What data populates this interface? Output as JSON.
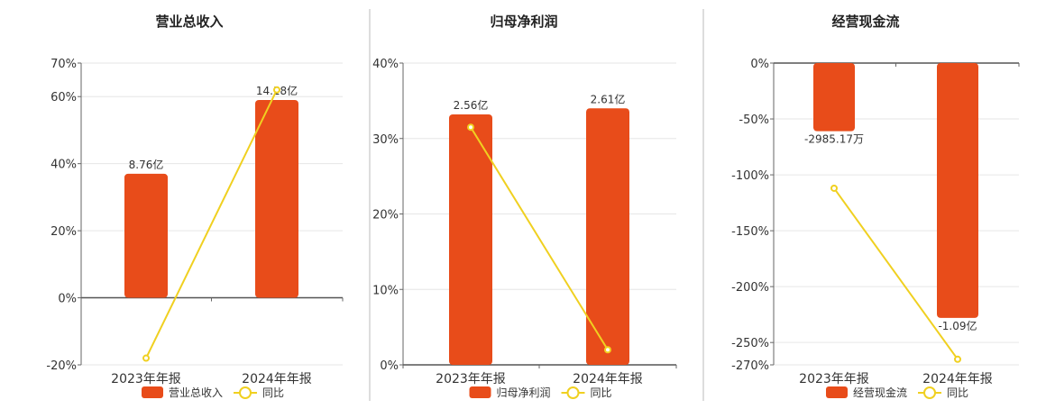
{
  "chart_data": [
    {
      "type": "bar",
      "title": "营业总收入",
      "categories": [
        "2023年年报",
        "2024年年报"
      ],
      "series": [
        {
          "name": "营业总收入",
          "type": "bar",
          "labels": [
            "8.76亿",
            "14.18亿"
          ]
        },
        {
          "name": "同比",
          "type": "line",
          "values": [
            -18,
            62
          ]
        }
      ],
      "bar_heights_in_axis_units": [
        37,
        59
      ],
      "yticks": [
        "70%",
        "60%",
        "40%",
        "20%",
        "0%",
        "-20%"
      ],
      "ytick_values": [
        70,
        60,
        40,
        20,
        0,
        -20
      ],
      "ylim": [
        -20,
        70
      ],
      "grid": true,
      "legend_position": "bottom",
      "colors": {
        "bar": "#e84c1a",
        "line": "#f0d020"
      }
    },
    {
      "type": "bar",
      "title": "归母净利润",
      "categories": [
        "2023年年报",
        "2024年年报"
      ],
      "series": [
        {
          "name": "归母净利润",
          "type": "bar",
          "labels": [
            "2.56亿",
            "2.61亿"
          ]
        },
        {
          "name": "同比",
          "type": "line",
          "values": [
            31.5,
            2
          ]
        }
      ],
      "bar_heights_in_axis_units": [
        33.2,
        34
      ],
      "yticks": [
        "40%",
        "30%",
        "20%",
        "10%",
        "0%"
      ],
      "ytick_values": [
        40,
        30,
        20,
        10,
        0
      ],
      "ylim": [
        0,
        40
      ],
      "grid": true,
      "legend_position": "bottom",
      "colors": {
        "bar": "#e84c1a",
        "line": "#f0d020"
      }
    },
    {
      "type": "bar",
      "title": "经营现金流",
      "categories": [
        "2023年年报",
        "2024年年报"
      ],
      "series": [
        {
          "name": "经营现金流",
          "type": "bar",
          "labels": [
            "-2985.17万",
            "-1.09亿"
          ]
        },
        {
          "name": "同比",
          "type": "line",
          "values": [
            -112,
            -265
          ]
        }
      ],
      "bar_heights_in_axis_units": [
        -61,
        -228
      ],
      "yticks": [
        "0%",
        "-50%",
        "-100%",
        "-150%",
        "-200%",
        "-250%",
        "-270%"
      ],
      "ytick_values": [
        0,
        -50,
        -100,
        -150,
        -200,
        -250,
        -270
      ],
      "ylim": [
        -270,
        0
      ],
      "grid": true,
      "legend_position": "bottom",
      "colors": {
        "bar": "#e84c1a",
        "line": "#f0d020"
      }
    }
  ]
}
